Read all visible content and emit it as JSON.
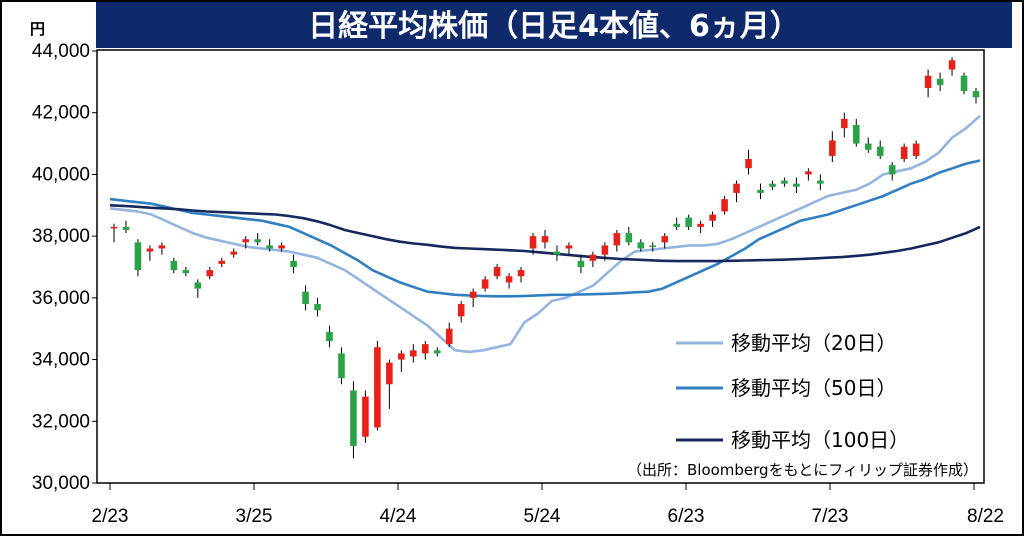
{
  "chart_data": {
    "type": "candlestick",
    "title": "日経平均株価（日足4本値、6ヵ月）",
    "unit": "円",
    "source": "（出所：Bloombergをもとにフィリップ証券作成）",
    "ylim": [
      30000,
      44000
    ],
    "y_ticks": [
      "44,000",
      "42,000",
      "40,000",
      "38,000",
      "36,000",
      "34,000",
      "32,000",
      "30,000"
    ],
    "x_ticks": [
      "2/23",
      "3/25",
      "4/24",
      "5/24",
      "6/23",
      "7/23",
      "8/22"
    ],
    "grid": false,
    "legend_position": "bottom-right",
    "colors": {
      "up": "#e8201a",
      "down": "#2aa347",
      "ma20": "#94b4e0",
      "ma50": "#2f7fc1",
      "ma100": "#16285e",
      "title_bar": "#0e2a6b"
    },
    "series": [
      {
        "name": "移動平均（20日）",
        "key": "ma20",
        "values": [
          38900,
          38850,
          38800,
          38700,
          38500,
          38300,
          38100,
          37950,
          37850,
          37750,
          37650,
          37600,
          37550,
          37500,
          37400,
          37300,
          37100,
          36900,
          36600,
          36300,
          36000,
          35700,
          35400,
          35100,
          34700,
          34300,
          34250,
          34300,
          34400,
          34500,
          35200,
          35500,
          35900,
          36000,
          36200,
          36400,
          36800,
          37200,
          37500,
          37550,
          37600,
          37650,
          37700,
          37700,
          37750,
          37900,
          38100,
          38300,
          38500,
          38700,
          38900,
          39100,
          39300,
          39400,
          39500,
          39700,
          40000,
          40100,
          40200,
          40400,
          40700,
          41200,
          41500,
          41900
        ]
      },
      {
        "name": "移動平均（50日）",
        "key": "ma50",
        "values": [
          39200,
          39150,
          39100,
          39050,
          38950,
          38850,
          38750,
          38700,
          38650,
          38600,
          38550,
          38500,
          38400,
          38300,
          38100,
          37900,
          37700,
          37450,
          37200,
          36900,
          36700,
          36500,
          36350,
          36200,
          36150,
          36100,
          36080,
          36060,
          36050,
          36050,
          36060,
          36080,
          36100,
          36100,
          36110,
          36120,
          36130,
          36150,
          36180,
          36200,
          36300,
          36500,
          36700,
          36900,
          37100,
          37350,
          37600,
          37900,
          38100,
          38300,
          38500,
          38600,
          38700,
          38850,
          39000,
          39150,
          39300,
          39500,
          39700,
          39850,
          40050,
          40200,
          40350,
          40450
        ]
      },
      {
        "name": "移動平均（100日）",
        "key": "ma100",
        "values": [
          39000,
          38980,
          38950,
          38920,
          38900,
          38870,
          38830,
          38800,
          38780,
          38760,
          38740,
          38720,
          38700,
          38650,
          38580,
          38480,
          38350,
          38200,
          38100,
          38000,
          37900,
          37820,
          37760,
          37720,
          37660,
          37620,
          37600,
          37580,
          37560,
          37540,
          37520,
          37480,
          37440,
          37400,
          37360,
          37320,
          37290,
          37260,
          37240,
          37220,
          37200,
          37190,
          37190,
          37190,
          37190,
          37200,
          37210,
          37220,
          37230,
          37240,
          37260,
          37280,
          37300,
          37320,
          37360,
          37400,
          37460,
          37520,
          37600,
          37700,
          37800,
          37950,
          38100,
          38300
        ]
      }
    ],
    "candles": [
      [
        38250,
        38400,
        37800,
        38300
      ],
      [
        38300,
        38500,
        38100,
        38200
      ],
      [
        37800,
        37900,
        36700,
        36900
      ],
      [
        37500,
        37700,
        37200,
        37600
      ],
      [
        37600,
        37800,
        37400,
        37700
      ],
      [
        37200,
        37300,
        36800,
        36900
      ],
      [
        36900,
        37000,
        36700,
        36800
      ],
      [
        36500,
        36600,
        36000,
        36300
      ],
      [
        36700,
        37000,
        36600,
        36900
      ],
      [
        37100,
        37300,
        37000,
        37200
      ],
      [
        37400,
        37600,
        37300,
        37500
      ],
      [
        37800,
        38000,
        37600,
        37900
      ],
      [
        37900,
        38100,
        37700,
        37800
      ],
      [
        37700,
        37900,
        37500,
        37600
      ],
      [
        37600,
        37800,
        37500,
        37700
      ],
      [
        37200,
        37400,
        36800,
        37000
      ],
      [
        36200,
        36400,
        35600,
        35800
      ],
      [
        35800,
        36000,
        35400,
        35600
      ],
      [
        34900,
        35100,
        34400,
        34600
      ],
      [
        34200,
        34400,
        33200,
        33400
      ],
      [
        33000,
        33300,
        30800,
        31200
      ],
      [
        31500,
        33000,
        31300,
        32800
      ],
      [
        31800,
        34600,
        31700,
        34400
      ],
      [
        33200,
        34000,
        32400,
        33900
      ],
      [
        34000,
        34300,
        33600,
        34200
      ],
      [
        34100,
        34500,
        33900,
        34300
      ],
      [
        34200,
        34600,
        34000,
        34500
      ],
      [
        34300,
        34400,
        34100,
        34200
      ],
      [
        34500,
        35200,
        34400,
        35000
      ],
      [
        35400,
        35900,
        35200,
        35800
      ],
      [
        36000,
        36300,
        35700,
        36200
      ],
      [
        36300,
        36700,
        36200,
        36600
      ],
      [
        36700,
        37100,
        36600,
        37000
      ],
      [
        36500,
        36800,
        36300,
        36700
      ],
      [
        36700,
        37000,
        36500,
        36900
      ],
      [
        37600,
        38100,
        37400,
        38000
      ],
      [
        37800,
        38200,
        37600,
        38000
      ],
      [
        37500,
        37700,
        37200,
        37400
      ],
      [
        37600,
        37800,
        37400,
        37700
      ],
      [
        37200,
        37400,
        36800,
        37000
      ],
      [
        37200,
        37500,
        37000,
        37400
      ],
      [
        37400,
        37800,
        37200,
        37700
      ],
      [
        37700,
        38200,
        37500,
        38100
      ],
      [
        38100,
        38300,
        37700,
        37800
      ],
      [
        37800,
        37900,
        37500,
        37600
      ],
      [
        37700,
        37800,
        37500,
        37650
      ],
      [
        37800,
        38100,
        37600,
        38000
      ],
      [
        38400,
        38600,
        38200,
        38300
      ],
      [
        38600,
        38700,
        38200,
        38300
      ],
      [
        38300,
        38500,
        38100,
        38400
      ],
      [
        38500,
        38800,
        38300,
        38700
      ],
      [
        38800,
        39300,
        38700,
        39200
      ],
      [
        39400,
        39800,
        39100,
        39700
      ],
      [
        40200,
        40800,
        40000,
        40500
      ],
      [
        39500,
        39700,
        39200,
        39400
      ],
      [
        39700,
        39800,
        39500,
        39600
      ],
      [
        39800,
        39900,
        39600,
        39700
      ],
      [
        39700,
        39900,
        39400,
        39600
      ],
      [
        40000,
        40200,
        39800,
        40100
      ],
      [
        39800,
        40000,
        39500,
        39700
      ],
      [
        40600,
        41400,
        40400,
        41100
      ],
      [
        41500,
        42000,
        41200,
        41800
      ],
      [
        41600,
        41800,
        40900,
        41000
      ],
      [
        41000,
        41200,
        40700,
        40800
      ],
      [
        40900,
        41100,
        40500,
        40600
      ],
      [
        40300,
        40400,
        39800,
        40000
      ],
      [
        40500,
        41000,
        40400,
        40900
      ],
      [
        40600,
        41100,
        40500,
        41000
      ],
      [
        42800,
        43400,
        42500,
        43200
      ],
      [
        43100,
        43300,
        42700,
        42900
      ],
      [
        43400,
        43800,
        43200,
        43700
      ],
      [
        43200,
        43300,
        42600,
        42700
      ],
      [
        42700,
        42800,
        42300,
        42500
      ]
    ]
  }
}
